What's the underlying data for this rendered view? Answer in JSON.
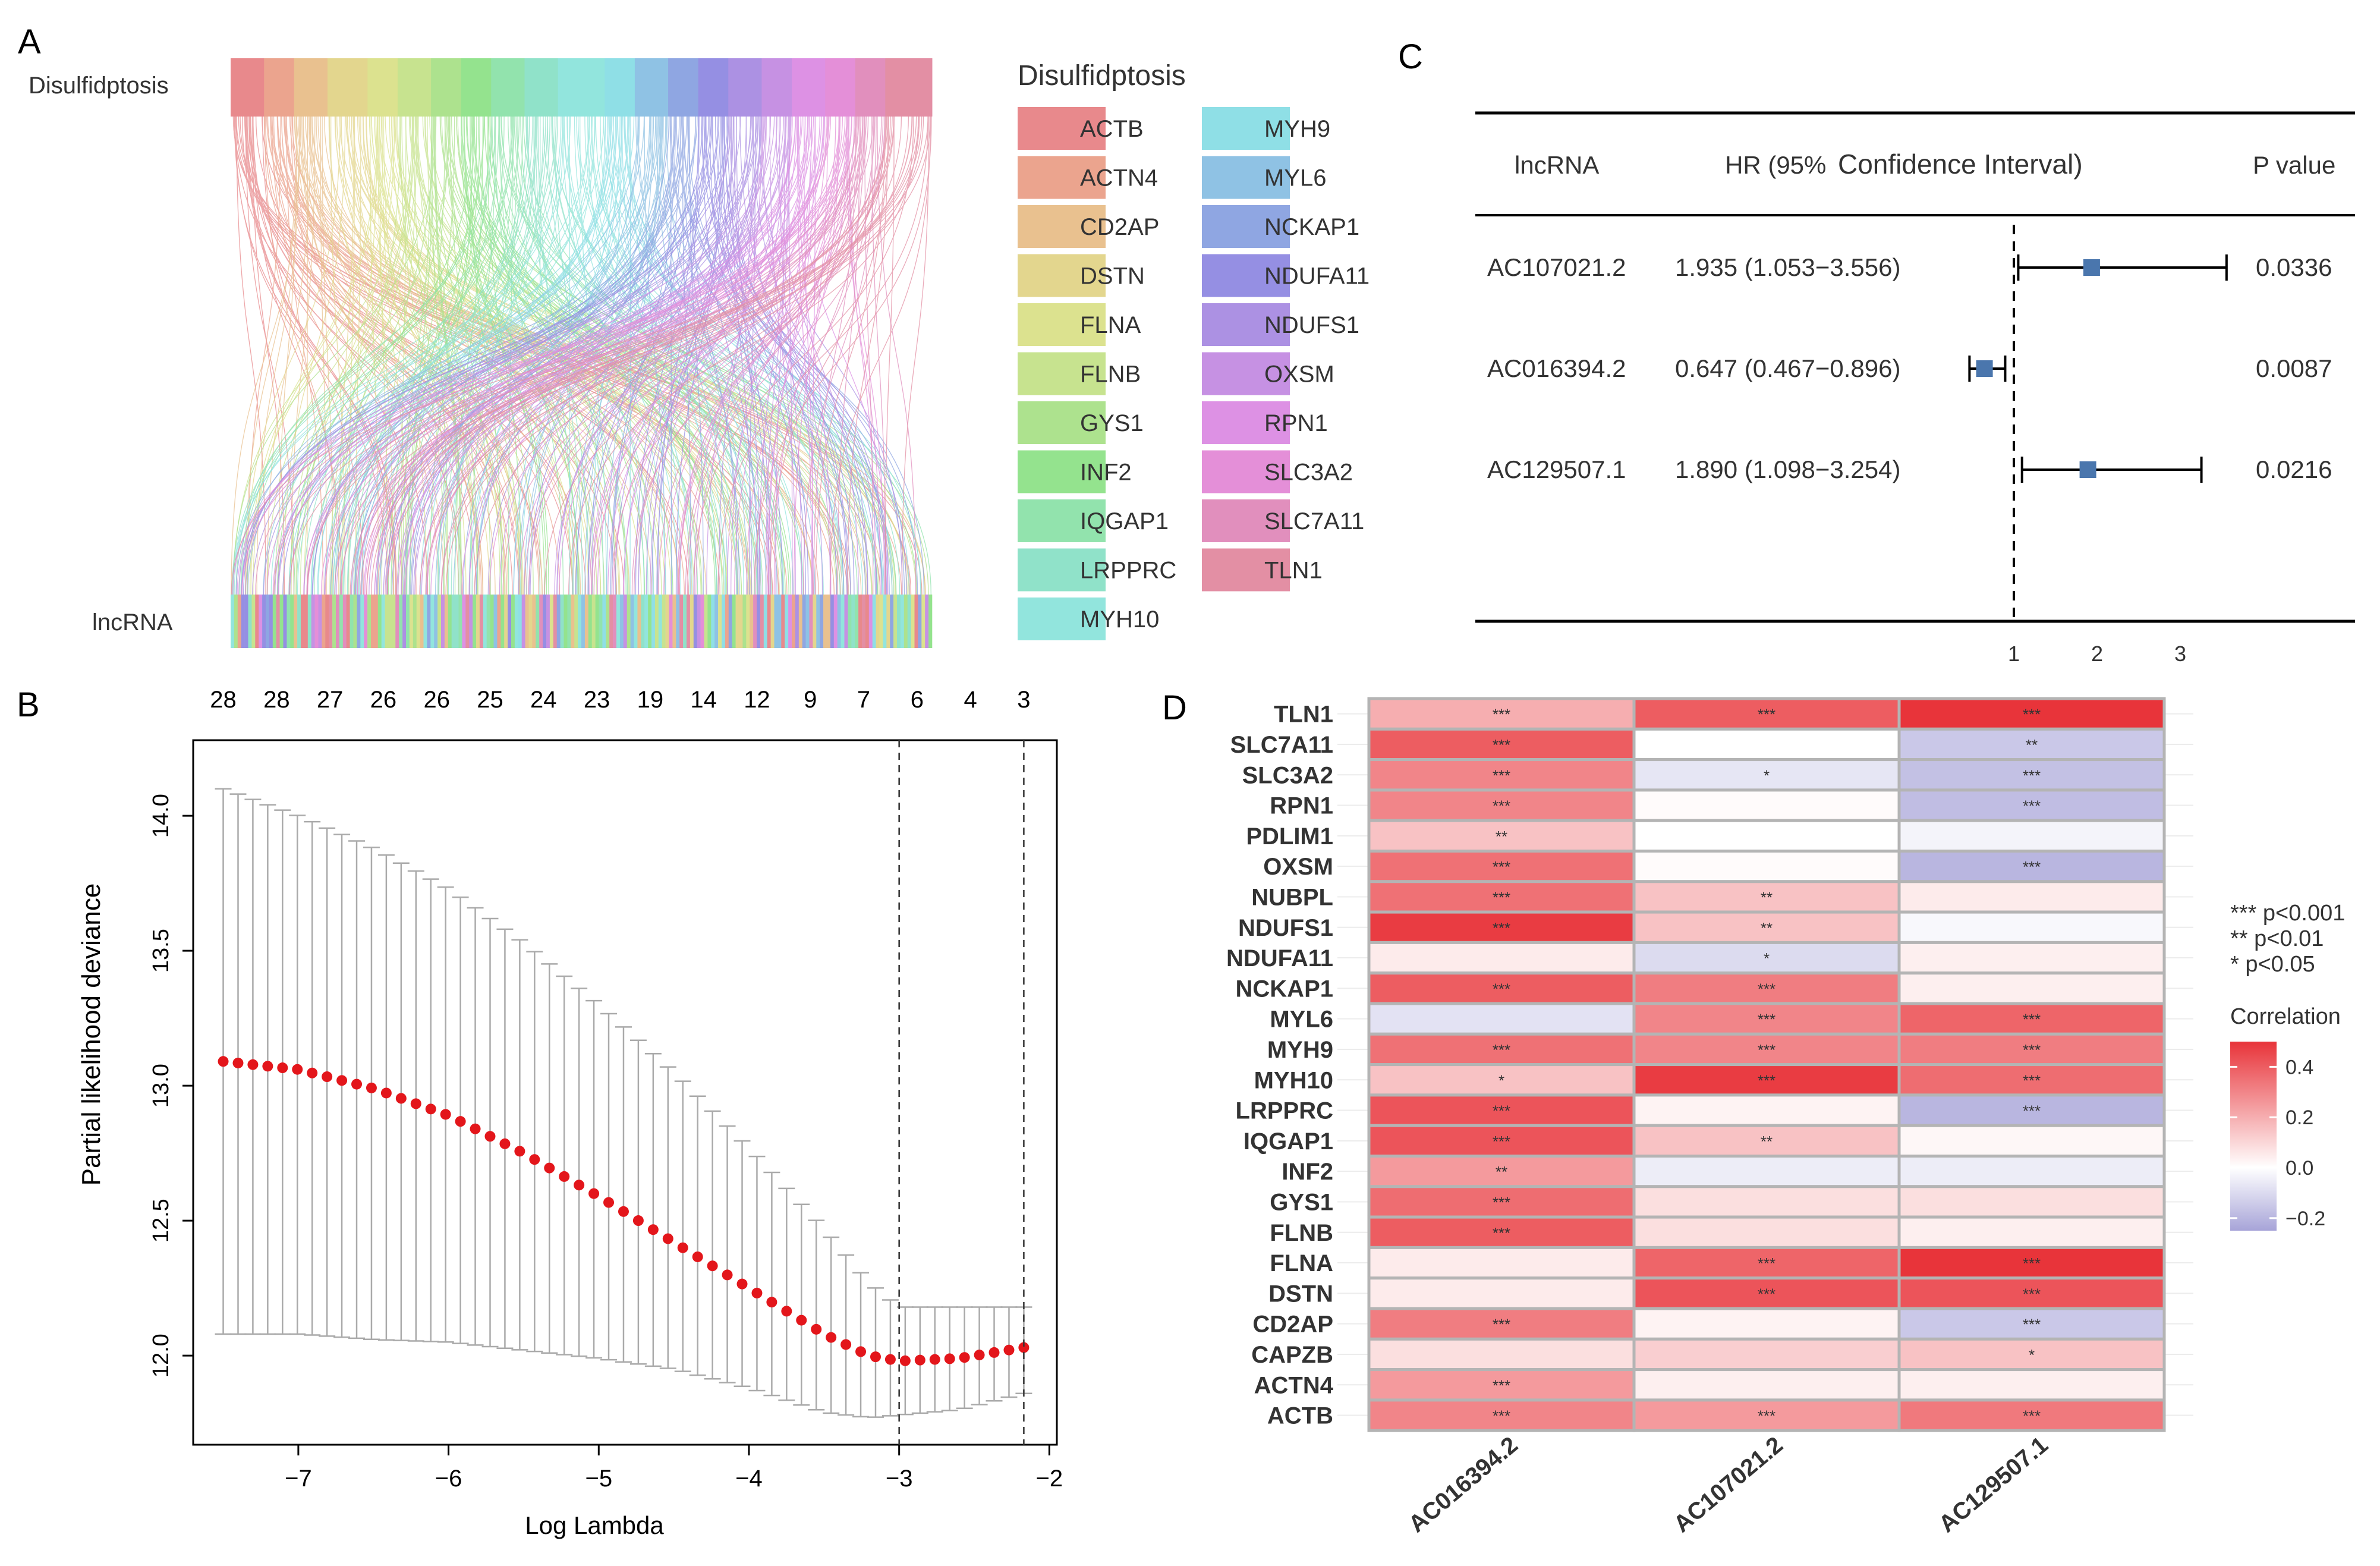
{
  "panel_labels": {
    "a": "A",
    "b": "B",
    "c": "C",
    "d": "D"
  },
  "chart_data": [
    {
      "panel": "A",
      "type": "sankey",
      "left_labels": {
        "top": "Disulfidptosis",
        "bottom": "lncRNA"
      },
      "legend_title": "Disulfidptosis",
      "genes": [
        {
          "name": "ACTB",
          "color": "#e8898c"
        },
        {
          "name": "ACTN4",
          "color": "#eba48e"
        },
        {
          "name": "CD2AP",
          "color": "#e9c18f"
        },
        {
          "name": "DSTN",
          "color": "#e3d68e"
        },
        {
          "name": "FLNA",
          "color": "#dce28f"
        },
        {
          "name": "FLNB",
          "color": "#c7e38f"
        },
        {
          "name": "GYS1",
          "color": "#ade28e"
        },
        {
          "name": "INF2",
          "color": "#94e38e"
        },
        {
          "name": "IQGAP1",
          "color": "#92e3ad"
        },
        {
          "name": "LRPPRC",
          "color": "#90e2c9"
        },
        {
          "name": "MYH10",
          "color": "#92e5dd"
        },
        {
          "name": "MYH9",
          "color": "#8fdfe6"
        },
        {
          "name": "MYL6",
          "color": "#8fc2e4"
        },
        {
          "name": "NCKAP1",
          "color": "#8fa6e2"
        },
        {
          "name": "NDUFA11",
          "color": "#958fe3"
        },
        {
          "name": "NDUFS1",
          "color": "#ac91e3"
        },
        {
          "name": "OXSM",
          "color": "#c691e3"
        },
        {
          "name": "RPN1",
          "color": "#dd91e4"
        },
        {
          "name": "SLC3A2",
          "color": "#e48fd8"
        },
        {
          "name": "SLC7A11",
          "color": "#e18fbd"
        },
        {
          "name": "TLN1",
          "color": "#e38fa4"
        }
      ]
    },
    {
      "panel": "B",
      "type": "line",
      "xlabel": "Log Lambda",
      "ylabel": "Partial likelihood deviance",
      "xlim": [
        -7.7,
        -1.95
      ],
      "ylim": [
        11.67,
        14.28
      ],
      "xticks": [
        -7,
        -6,
        -5,
        -4,
        -3,
        -2
      ],
      "yticks": [
        12.0,
        12.5,
        13.0,
        13.5,
        14.0
      ],
      "top_counts": [
        "28",
        "28",
        "27",
        "26",
        "26",
        "25",
        "24",
        "23",
        "19",
        "14",
        "12",
        "9",
        "7",
        "6",
        "4",
        "3"
      ],
      "vlines": [
        -3.0,
        -2.17
      ],
      "x_range": [
        -7.5,
        -2.17
      ],
      "n_points": 55,
      "mean_curve": [
        [
          -7.5,
          13.09
        ],
        [
          -7.0,
          13.06
        ],
        [
          -6.5,
          12.99
        ],
        [
          -6.0,
          12.89
        ],
        [
          -5.5,
          12.75
        ],
        [
          -5.0,
          12.59
        ],
        [
          -4.5,
          12.42
        ],
        [
          -4.0,
          12.25
        ],
        [
          -3.5,
          12.08
        ],
        [
          -3.2,
          12.0
        ],
        [
          -3.0,
          11.98
        ],
        [
          -2.6,
          11.99
        ],
        [
          -2.17,
          12.03
        ]
      ],
      "upper_curve": [
        [
          -7.5,
          14.1
        ],
        [
          -7.0,
          14.0
        ],
        [
          -6.5,
          13.88
        ],
        [
          -6.0,
          13.73
        ],
        [
          -5.5,
          13.53
        ],
        [
          -5.0,
          13.3
        ],
        [
          -4.5,
          13.05
        ],
        [
          -4.0,
          12.77
        ],
        [
          -3.5,
          12.47
        ],
        [
          -3.2,
          12.27
        ],
        [
          -3.0,
          12.18
        ],
        [
          -2.6,
          12.18
        ],
        [
          -2.17,
          12.18
        ]
      ],
      "lower_curve": [
        [
          -7.5,
          12.08
        ],
        [
          -7.0,
          12.08
        ],
        [
          -6.5,
          12.06
        ],
        [
          -6.0,
          12.05
        ],
        [
          -5.5,
          12.02
        ],
        [
          -5.0,
          11.99
        ],
        [
          -4.5,
          11.95
        ],
        [
          -4.0,
          11.88
        ],
        [
          -3.5,
          11.79
        ],
        [
          -3.2,
          11.77
        ],
        [
          -3.0,
          11.78
        ],
        [
          -2.6,
          11.8
        ],
        [
          -2.17,
          11.86
        ]
      ]
    },
    {
      "panel": "C",
      "type": "forest",
      "headers": {
        "lncrna": "lncRNA",
        "hr": "HR (95%",
        "ci": "Confidence Interval)",
        "p": "P value"
      },
      "rows": [
        {
          "name": "AC107021.2",
          "hr_text": "1.935 (1.053−3.556)",
          "hr": 1.935,
          "lo": 1.053,
          "hi": 3.556,
          "p": "0.0336"
        },
        {
          "name": "AC016394.2",
          "hr_text": "0.647 (0.467−0.896)",
          "hr": 0.647,
          "lo": 0.467,
          "hi": 0.896,
          "p": "0.0087"
        },
        {
          "name": "AC129507.1",
          "hr_text": "1.890 (1.098−3.254)",
          "hr": 1.89,
          "lo": 1.098,
          "hi": 3.254,
          "p": "0.0216"
        }
      ],
      "xticks": [
        "1",
        "2",
        "3"
      ],
      "ref_line": 1,
      "marker_color": "#4a76ad"
    },
    {
      "panel": "D",
      "type": "heatmap",
      "rows": [
        "TLN1",
        "SLC7A11",
        "SLC3A2",
        "RPN1",
        "PDLIM1",
        "OXSM",
        "NUBPL",
        "NDUFS1",
        "NDUFA11",
        "NCKAP1",
        "MYL6",
        "MYH9",
        "MYH10",
        "LRPPRC",
        "IQGAP1",
        "INF2",
        "GYS1",
        "FLNB",
        "FLNA",
        "DSTN",
        "CD2AP",
        "CAPZB",
        "ACTN4",
        "ACTB"
      ],
      "columns": [
        "AC016394.2",
        "AC107021.2",
        "AC129507.1"
      ],
      "values": [
        [
          0.2,
          0.4,
          0.5
        ],
        [
          0.4,
          0.0,
          -0.15
        ],
        [
          0.3,
          -0.07,
          -0.17
        ],
        [
          0.3,
          0.01,
          -0.18
        ],
        [
          0.15,
          0.0,
          -0.03
        ],
        [
          0.35,
          0.01,
          -0.2
        ],
        [
          0.35,
          0.15,
          0.05
        ],
        [
          0.48,
          0.15,
          -0.02
        ],
        [
          0.05,
          -0.1,
          0.04
        ],
        [
          0.4,
          0.32,
          0.04
        ],
        [
          -0.08,
          0.3,
          0.38
        ],
        [
          0.35,
          0.3,
          0.32
        ],
        [
          0.15,
          0.48,
          0.36
        ],
        [
          0.42,
          0.03,
          -0.2
        ],
        [
          0.42,
          0.15,
          0.02
        ],
        [
          0.25,
          -0.05,
          -0.05
        ],
        [
          0.36,
          0.08,
          0.08
        ],
        [
          0.4,
          0.08,
          0.04
        ],
        [
          0.05,
          0.38,
          0.5
        ],
        [
          0.05,
          0.42,
          0.42
        ],
        [
          0.32,
          0.03,
          -0.15
        ],
        [
          0.08,
          0.12,
          0.15
        ],
        [
          0.25,
          0.04,
          0.04
        ],
        [
          0.3,
          0.25,
          0.33
        ]
      ],
      "stars": [
        [
          "***",
          "***",
          "***"
        ],
        [
          "***",
          "",
          "**"
        ],
        [
          "***",
          "*",
          "***"
        ],
        [
          "***",
          "",
          "***"
        ],
        [
          "**",
          "",
          ""
        ],
        [
          "***",
          "",
          "***"
        ],
        [
          "***",
          "**",
          ""
        ],
        [
          "***",
          "**",
          ""
        ],
        [
          "",
          "*",
          ""
        ],
        [
          "***",
          "***",
          ""
        ],
        [
          "",
          "***",
          "***"
        ],
        [
          "***",
          "***",
          "***"
        ],
        [
          "*",
          "***",
          "***"
        ],
        [
          "***",
          "",
          "***"
        ],
        [
          "***",
          "**",
          ""
        ],
        [
          "**",
          "",
          ""
        ],
        [
          "***",
          "",
          ""
        ],
        [
          "***",
          "",
          ""
        ],
        [
          "",
          "***",
          "***"
        ],
        [
          "",
          "***",
          "***"
        ],
        [
          "***",
          "",
          "***"
        ],
        [
          "",
          "",
          "*"
        ],
        [
          "***",
          "",
          ""
        ],
        [
          "***",
          "***",
          "***"
        ]
      ],
      "sig_legend": [
        "***  p<0.001",
        "**  p<0.01",
        "*  p<0.05"
      ],
      "colorbar_title": "Correlation",
      "colorbar_ticks": [
        "0.4",
        "0.2",
        "0.0",
        "−0.2"
      ],
      "colorbar_values": [
        0.4,
        0.2,
        0.0,
        -0.2
      ],
      "color_range": [
        -0.25,
        0.5
      ],
      "color_stops": {
        "low": "#a7a4d8",
        "mid": "#ffffff",
        "high": "#e8343a"
      }
    }
  ]
}
